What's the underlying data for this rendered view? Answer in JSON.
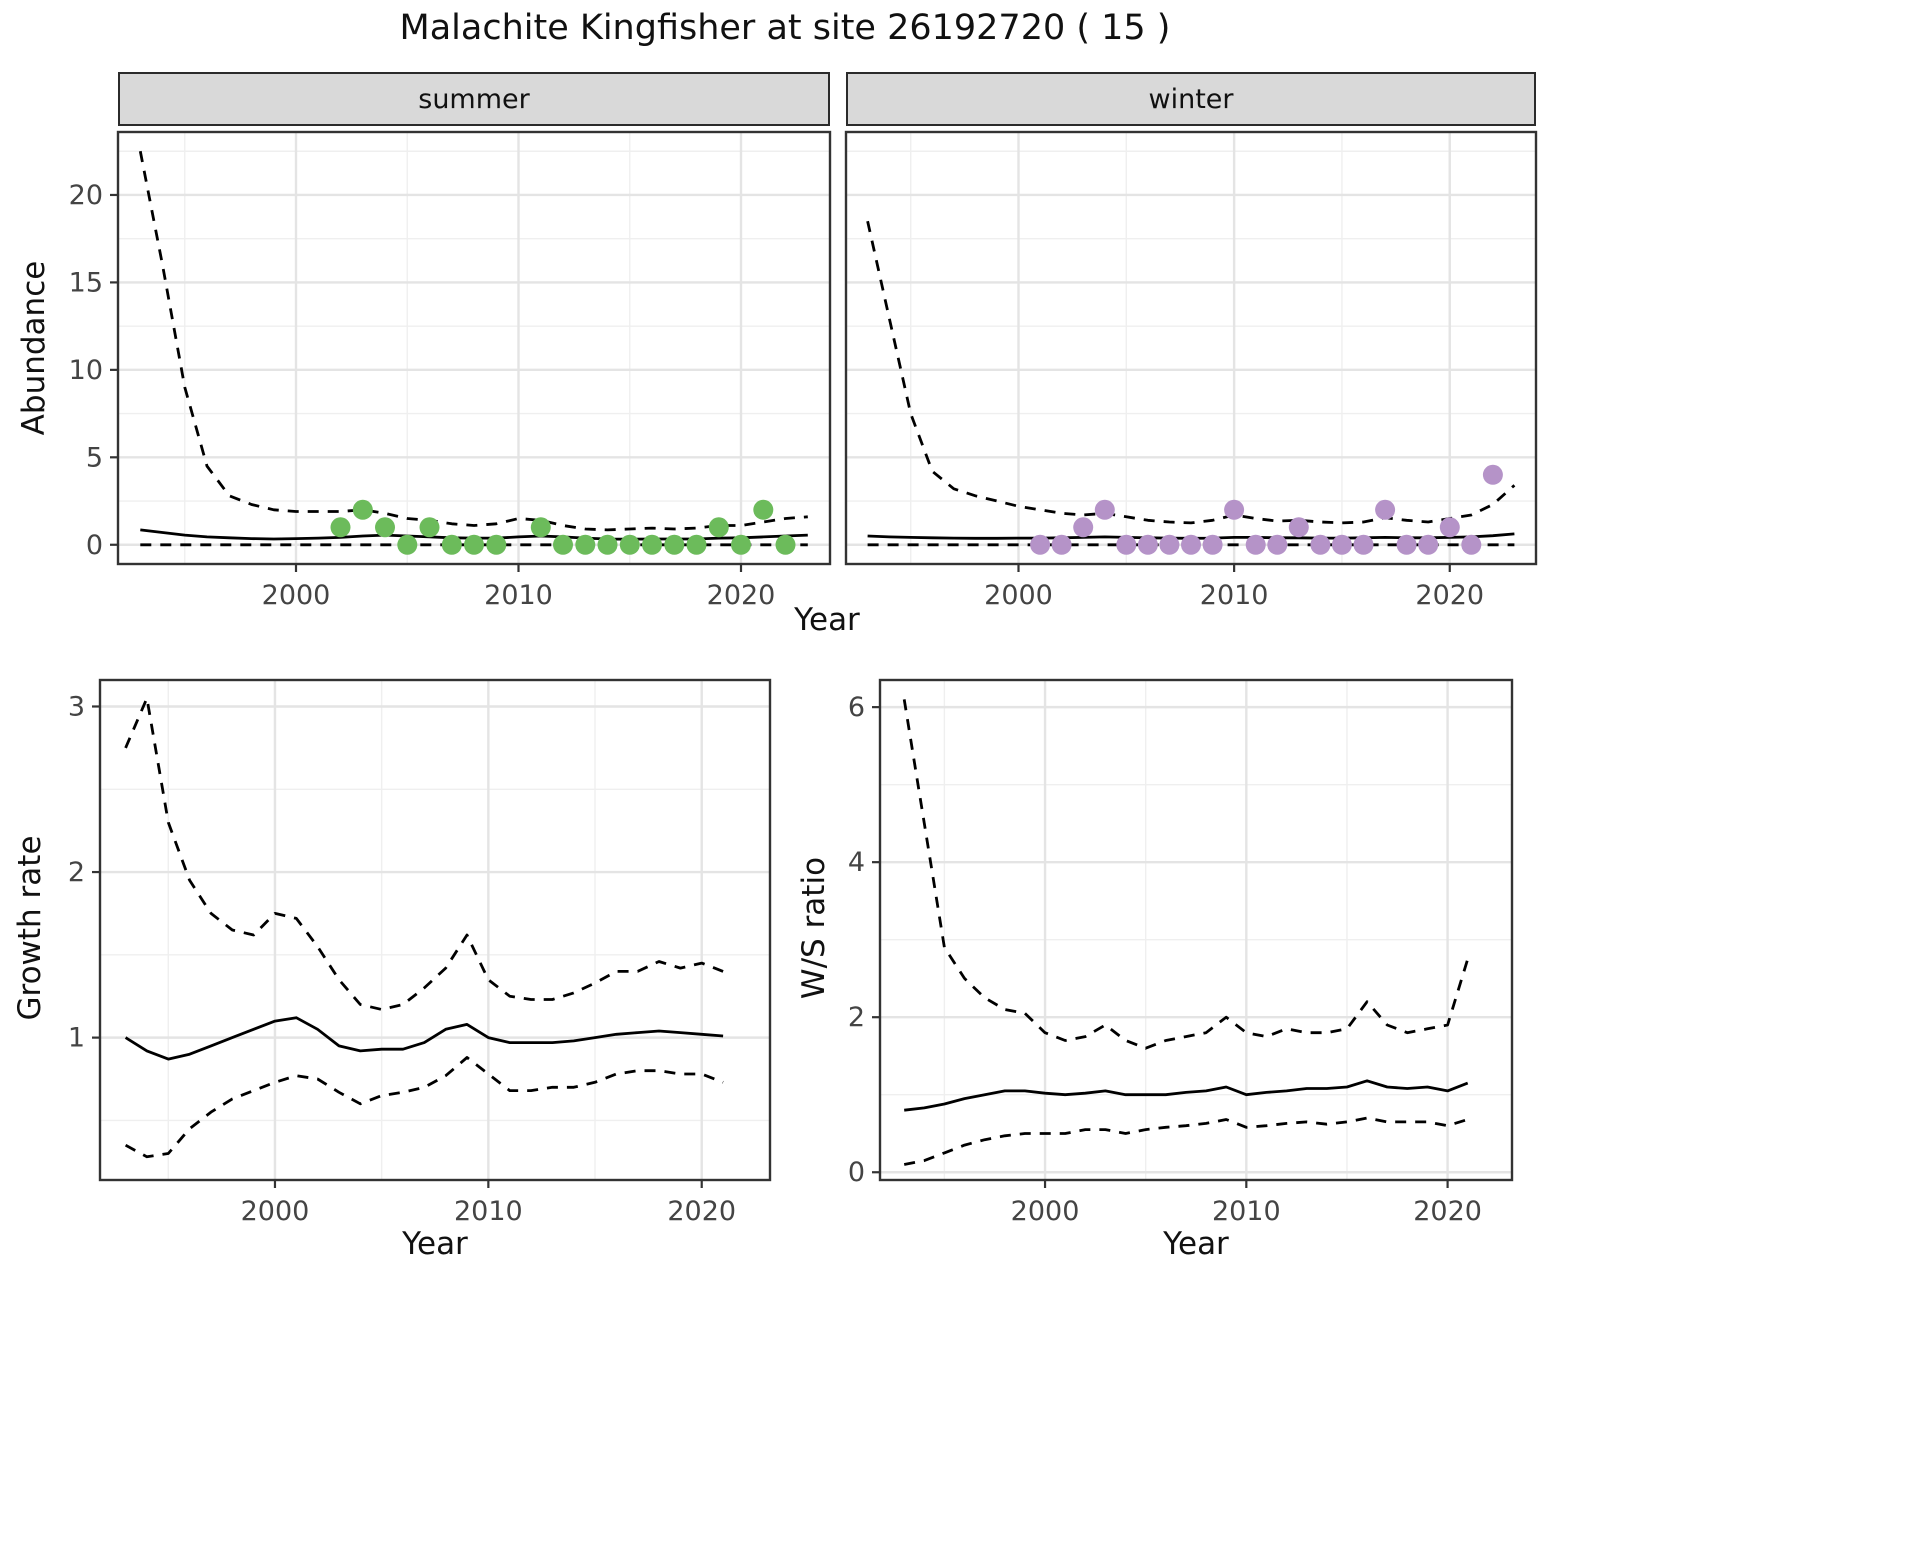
{
  "title": "Malachite Kingfisher at site 26192720 ( 15 )",
  "colors": {
    "summer_point": "#6cbb5b",
    "winter_point": "#b593c8",
    "line": "#000000",
    "grid_major": "#e4e4e4",
    "grid_minor": "#efefef",
    "panel_border": "#333333",
    "tick_text": "#444444",
    "strip_bg": "#d9d9d9"
  },
  "labels": {
    "year": "Year",
    "abundance": "Abundance"
  },
  "chart_data": [
    {
      "id": "abundance_summer",
      "type": "line",
      "facet_label": "summer",
      "ylabel": "Abundance",
      "xlabel": "Year",
      "xlim": [
        1992,
        2024
      ],
      "ylim": [
        -1.1,
        23.6
      ],
      "xticks": [
        2000,
        2010,
        2020
      ],
      "yticks": [
        0,
        5,
        10,
        15,
        20
      ],
      "x": [
        1993,
        1994,
        1995,
        1996,
        1997,
        1998,
        1999,
        2000,
        2001,
        2002,
        2003,
        2004,
        2005,
        2006,
        2007,
        2008,
        2009,
        2010,
        2011,
        2012,
        2013,
        2014,
        2015,
        2016,
        2017,
        2018,
        2019,
        2020,
        2021,
        2022,
        2023
      ],
      "series": [
        {
          "name": "upper_ci",
          "style": "dashed",
          "values": [
            22.5,
            16,
            9,
            4.5,
            2.8,
            2.3,
            2.0,
            1.9,
            1.9,
            1.9,
            2.0,
            1.8,
            1.5,
            1.4,
            1.2,
            1.1,
            1.2,
            1.5,
            1.4,
            1.1,
            0.9,
            0.85,
            0.9,
            0.95,
            0.9,
            0.95,
            1.1,
            1.1,
            1.3,
            1.5,
            1.6
          ]
        },
        {
          "name": "mean",
          "style": "solid",
          "values": [
            0.85,
            0.7,
            0.55,
            0.45,
            0.4,
            0.35,
            0.33,
            0.35,
            0.38,
            0.42,
            0.5,
            0.55,
            0.5,
            0.45,
            0.4,
            0.38,
            0.38,
            0.45,
            0.5,
            0.45,
            0.38,
            0.33,
            0.32,
            0.33,
            0.33,
            0.33,
            0.38,
            0.4,
            0.45,
            0.5,
            0.55
          ]
        },
        {
          "name": "lower_ci",
          "style": "dashed",
          "values": [
            0,
            0,
            0,
            0,
            0,
            0,
            0,
            0,
            0,
            0,
            0,
            0,
            0,
            0,
            0,
            0,
            0,
            0,
            0,
            0,
            0,
            0,
            0,
            0,
            0,
            0,
            0,
            0,
            0,
            0,
            0
          ]
        }
      ],
      "points": {
        "name": "observed_counts",
        "color_key": "summer_point",
        "x": [
          2002,
          2003,
          2004,
          2005,
          2006,
          2007,
          2008,
          2009,
          2011,
          2012,
          2013,
          2014,
          2015,
          2016,
          2017,
          2018,
          2019,
          2020,
          2021,
          2022
        ],
        "y": [
          1,
          2,
          1,
          0,
          1,
          0,
          0,
          0,
          1,
          0,
          0,
          0,
          0,
          0,
          0,
          0,
          1,
          0,
          2,
          0
        ]
      }
    },
    {
      "id": "abundance_winter",
      "type": "line",
      "facet_label": "winter",
      "ylabel": "Abundance",
      "xlabel": "Year",
      "xlim": [
        1992,
        2024
      ],
      "ylim": [
        -1.1,
        23.6
      ],
      "xticks": [
        2000,
        2010,
        2020
      ],
      "yticks": [
        0,
        5,
        10,
        15,
        20
      ],
      "x": [
        1993,
        1994,
        1995,
        1996,
        1997,
        1998,
        1999,
        2000,
        2001,
        2002,
        2003,
        2004,
        2005,
        2006,
        2007,
        2008,
        2009,
        2010,
        2011,
        2012,
        2013,
        2014,
        2015,
        2016,
        2017,
        2018,
        2019,
        2020,
        2021,
        2022,
        2023
      ],
      "series": [
        {
          "name": "upper_ci",
          "style": "dashed",
          "values": [
            18.5,
            13,
            7.5,
            4.2,
            3.2,
            2.8,
            2.5,
            2.2,
            2.0,
            1.8,
            1.7,
            1.8,
            1.6,
            1.4,
            1.3,
            1.25,
            1.4,
            1.7,
            1.5,
            1.35,
            1.4,
            1.3,
            1.25,
            1.3,
            1.55,
            1.4,
            1.3,
            1.5,
            1.7,
            2.3,
            3.4
          ]
        },
        {
          "name": "mean",
          "style": "solid",
          "values": [
            0.5,
            0.45,
            0.42,
            0.4,
            0.38,
            0.37,
            0.37,
            0.38,
            0.38,
            0.4,
            0.42,
            0.45,
            0.42,
            0.4,
            0.38,
            0.37,
            0.38,
            0.42,
            0.42,
            0.4,
            0.4,
            0.38,
            0.38,
            0.4,
            0.42,
            0.4,
            0.4,
            0.42,
            0.45,
            0.52,
            0.62
          ]
        },
        {
          "name": "lower_ci",
          "style": "dashed",
          "values": [
            0,
            0,
            0,
            0,
            0,
            0,
            0,
            0,
            0,
            0,
            0,
            0,
            0,
            0,
            0,
            0,
            0,
            0,
            0,
            0,
            0,
            0,
            0,
            0,
            0,
            0,
            0,
            0,
            0,
            0,
            0
          ]
        }
      ],
      "points": {
        "name": "observed_counts",
        "color_key": "winter_point",
        "x": [
          2001,
          2002,
          2003,
          2004,
          2005,
          2006,
          2007,
          2008,
          2009,
          2010,
          2011,
          2012,
          2013,
          2014,
          2015,
          2016,
          2017,
          2018,
          2019,
          2020,
          2021,
          2022
        ],
        "y": [
          0,
          0,
          1,
          2,
          0,
          0,
          0,
          0,
          0,
          2,
          0,
          0,
          1,
          0,
          0,
          0,
          2,
          0,
          0,
          1,
          0,
          4
        ]
      }
    },
    {
      "id": "growth_rate",
      "type": "line",
      "facet_label": "",
      "ylabel": "Growth rate",
      "xlabel": "Year",
      "xlim": [
        1991.8,
        2023.2
      ],
      "ylim": [
        0.14,
        3.16
      ],
      "xticks": [
        2000,
        2010,
        2020
      ],
      "yticks": [
        1,
        2,
        3
      ],
      "x": [
        1993,
        1994,
        1995,
        1996,
        1997,
        1998,
        1999,
        2000,
        2001,
        2002,
        2003,
        2004,
        2005,
        2006,
        2007,
        2008,
        2009,
        2010,
        2011,
        2012,
        2013,
        2014,
        2015,
        2016,
        2017,
        2018,
        2019,
        2020,
        2021
      ],
      "series": [
        {
          "name": "upper_ci",
          "style": "dashed",
          "values": [
            2.75,
            3.05,
            2.3,
            1.95,
            1.75,
            1.65,
            1.62,
            1.75,
            1.72,
            1.55,
            1.35,
            1.2,
            1.17,
            1.2,
            1.3,
            1.42,
            1.62,
            1.35,
            1.25,
            1.23,
            1.23,
            1.27,
            1.33,
            1.4,
            1.4,
            1.46,
            1.42,
            1.45,
            1.4
          ]
        },
        {
          "name": "mean",
          "style": "solid",
          "values": [
            1.0,
            0.92,
            0.87,
            0.9,
            0.95,
            1.0,
            1.05,
            1.1,
            1.12,
            1.05,
            0.95,
            0.92,
            0.93,
            0.93,
            0.97,
            1.05,
            1.08,
            1.0,
            0.97,
            0.97,
            0.97,
            0.98,
            1.0,
            1.02,
            1.03,
            1.04,
            1.03,
            1.02,
            1.01
          ]
        },
        {
          "name": "lower_ci",
          "style": "dashed",
          "values": [
            0.35,
            0.28,
            0.3,
            0.45,
            0.55,
            0.63,
            0.68,
            0.73,
            0.77,
            0.75,
            0.67,
            0.6,
            0.65,
            0.67,
            0.7,
            0.77,
            0.88,
            0.78,
            0.68,
            0.68,
            0.7,
            0.7,
            0.73,
            0.78,
            0.8,
            0.8,
            0.78,
            0.78,
            0.73
          ]
        }
      ],
      "points": null
    },
    {
      "id": "ws_ratio",
      "type": "line",
      "facet_label": "",
      "ylabel": "W/S ratio",
      "xlabel": "Year",
      "xlim": [
        1991.8,
        2023.2
      ],
      "ylim": [
        -0.1,
        6.35
      ],
      "xticks": [
        2000,
        2010,
        2020
      ],
      "yticks": [
        0,
        2,
        4,
        6
      ],
      "x": [
        1993,
        1994,
        1995,
        1996,
        1997,
        1998,
        1999,
        2000,
        2001,
        2002,
        2003,
        2004,
        2005,
        2006,
        2007,
        2008,
        2009,
        2010,
        2011,
        2012,
        2013,
        2014,
        2015,
        2016,
        2017,
        2018,
        2019,
        2020,
        2021
      ],
      "series": [
        {
          "name": "upper_ci",
          "style": "dashed",
          "values": [
            6.1,
            4.5,
            2.9,
            2.5,
            2.25,
            2.1,
            2.05,
            1.8,
            1.7,
            1.75,
            1.9,
            1.7,
            1.6,
            1.7,
            1.75,
            1.8,
            2.0,
            1.8,
            1.75,
            1.85,
            1.8,
            1.8,
            1.85,
            2.2,
            1.9,
            1.8,
            1.85,
            1.9,
            2.75
          ]
        },
        {
          "name": "mean",
          "style": "solid",
          "values": [
            0.8,
            0.83,
            0.88,
            0.95,
            1.0,
            1.05,
            1.05,
            1.02,
            1.0,
            1.02,
            1.05,
            1.0,
            1.0,
            1.0,
            1.03,
            1.05,
            1.1,
            1.0,
            1.03,
            1.05,
            1.08,
            1.08,
            1.1,
            1.18,
            1.1,
            1.08,
            1.1,
            1.05,
            1.15
          ]
        },
        {
          "name": "lower_ci",
          "style": "dashed",
          "values": [
            0.1,
            0.15,
            0.25,
            0.35,
            0.42,
            0.47,
            0.5,
            0.5,
            0.5,
            0.55,
            0.55,
            0.5,
            0.55,
            0.58,
            0.6,
            0.63,
            0.68,
            0.58,
            0.6,
            0.63,
            0.65,
            0.62,
            0.65,
            0.7,
            0.65,
            0.65,
            0.65,
            0.6,
            0.68
          ]
        }
      ],
      "points": null
    }
  ]
}
